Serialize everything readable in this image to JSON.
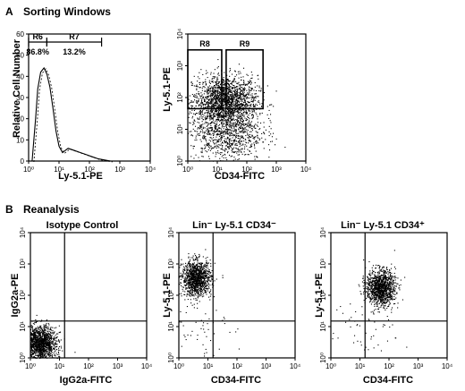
{
  "sections": {
    "a_label": "A",
    "a_title": "Sorting Windows",
    "b_label": "B",
    "b_title": "Reanalysis"
  },
  "histogram": {
    "ylabel": "Relative Cell Number",
    "xlabel": "Ly-5.1-PE",
    "tick_labels": [
      "10⁰",
      "10¹",
      "10²",
      "10³",
      "10⁴"
    ],
    "gates": [
      {
        "name": "R6",
        "percent": "86.8%",
        "x_from_log": 0,
        "x_to_log": 0.6
      },
      {
        "name": "R7",
        "percent": "13.2%",
        "x_from_log": 0.6,
        "x_to_log": 2.4
      }
    ]
  },
  "gate_dot_plot": {
    "ylabel": "Ly-5.1-PE",
    "xlabel": "CD34-FITC",
    "gates": [
      {
        "name": "R8",
        "x_from_log": 0,
        "x_to_log": 1.15,
        "y_from_log": 1.65,
        "y_to_log": 3.5
      },
      {
        "name": "R9",
        "x_from_log": 1.3,
        "x_to_log": 2.55,
        "y_from_log": 1.65,
        "y_to_log": 3.5
      }
    ]
  },
  "reanalysis_plots": [
    {
      "title": "Isotype Control",
      "xlabel": "IgG2a-FITC",
      "ylabel": "IgG2a-PE"
    },
    {
      "title": "Lin⁻ Ly-5.1 CD34⁻",
      "xlabel": "CD34-FITC",
      "ylabel": "Ly-5.1-PE"
    },
    {
      "title": "Lin⁻ Ly-5.1 CD34⁺",
      "xlabel": "CD34-FITC",
      "ylabel": "Ly-5.1-PE"
    }
  ],
  "chart_data": [
    {
      "type": "line",
      "panel": "A-histogram",
      "xlabel": "Ly-5.1-PE",
      "ylabel": "Relative Cell Number",
      "xscale": "log",
      "xlim": [
        1,
        10000
      ],
      "series": [
        {
          "x": [
            1.3,
            1.7,
            2.0,
            2.5,
            3.2,
            4.0,
            5.0,
            6.3,
            8.0,
            10,
            13,
            16,
            20,
            32,
            50,
            80,
            126,
            200,
            316,
            500
          ],
          "values": [
            0,
            20,
            34,
            42,
            44,
            41,
            35,
            25,
            14,
            7,
            4,
            5,
            6,
            5,
            4,
            3,
            2,
            1,
            0.5,
            0
          ]
        }
      ],
      "regions": [
        {
          "name": "R6",
          "percent": 86.8
        },
        {
          "name": "R7",
          "percent": 13.2
        }
      ]
    },
    {
      "type": "scatter",
      "panel": "A-dotplot",
      "xlabel": "CD34-FITC",
      "ylabel": "Ly-5.1-PE",
      "xscale": "log",
      "yscale": "log",
      "xlim": [
        1,
        10000
      ],
      "ylim": [
        1,
        10000
      ]
    },
    {
      "type": "scatter",
      "panel": "B-isotype",
      "xlabel": "IgG2a-FITC",
      "ylabel": "IgG2a-PE",
      "xscale": "log",
      "yscale": "log",
      "xlim": [
        1,
        10000
      ],
      "ylim": [
        1,
        10000
      ],
      "quadrant": {
        "x": 15,
        "y": 15
      }
    },
    {
      "type": "scatter",
      "panel": "B-cd34neg",
      "xlabel": "CD34-FITC",
      "ylabel": "Ly-5.1-PE",
      "xscale": "log",
      "yscale": "log",
      "xlim": [
        1,
        10000
      ],
      "ylim": [
        1,
        10000
      ],
      "quadrant": {
        "x": 15,
        "y": 15
      }
    },
    {
      "type": "scatter",
      "panel": "B-cd34pos",
      "xlabel": "CD34-FITC",
      "ylabel": "Ly-5.1-PE",
      "xscale": "log",
      "yscale": "log",
      "xlim": [
        1,
        10000
      ],
      "ylim": [
        1,
        10000
      ],
      "quadrant": {
        "x": 15,
        "y": 15
      }
    }
  ]
}
